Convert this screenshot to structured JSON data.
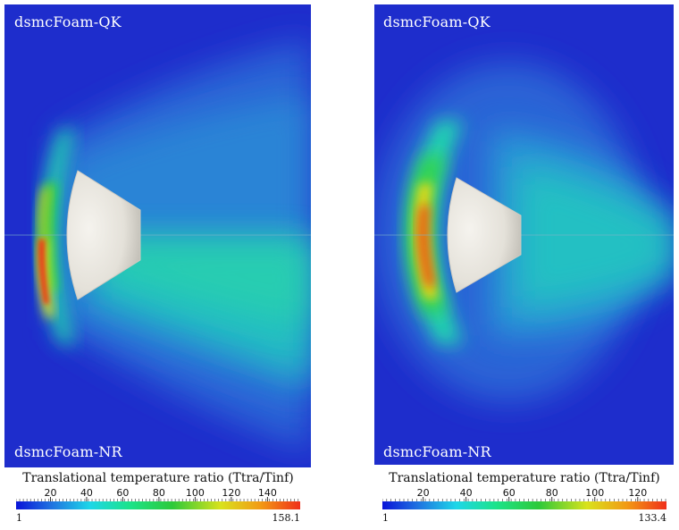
{
  "left_panel": {
    "top_label": "dsmcFoam-QK",
    "bottom_label": "dsmcFoam-NR",
    "colorbar": {
      "title": "Translational temperature ratio (Ttra/Tinf)",
      "ticks": [
        "20",
        "40",
        "60",
        "80",
        "100",
        "120",
        "140"
      ],
      "tick_values": [
        20,
        40,
        60,
        80,
        100,
        120,
        140
      ],
      "min_label": "1",
      "max_label": "158.1",
      "min": 1,
      "max": 158.1
    }
  },
  "right_panel": {
    "top_label": "dsmcFoam-QK",
    "bottom_label": "dsmcFoam-NR",
    "colorbar": {
      "title": "Translational temperature ratio (Ttra/Tinf)",
      "ticks": [
        "20",
        "40",
        "60",
        "80",
        "100",
        "120"
      ],
      "tick_values": [
        20,
        40,
        60,
        80,
        100,
        120
      ],
      "min_label": "1",
      "max_label": "133.4",
      "min": 1,
      "max": 133.4
    }
  },
  "colors": {
    "background_flow": "#1f2fd0",
    "colormap": [
      "#0a14d8",
      "#1f6fe0",
      "#1ed6e8",
      "#1ce38a",
      "#2dc93a",
      "#d9e21c",
      "#f29a14",
      "#f0301a"
    ],
    "capsule": "#e7e4dc"
  }
}
